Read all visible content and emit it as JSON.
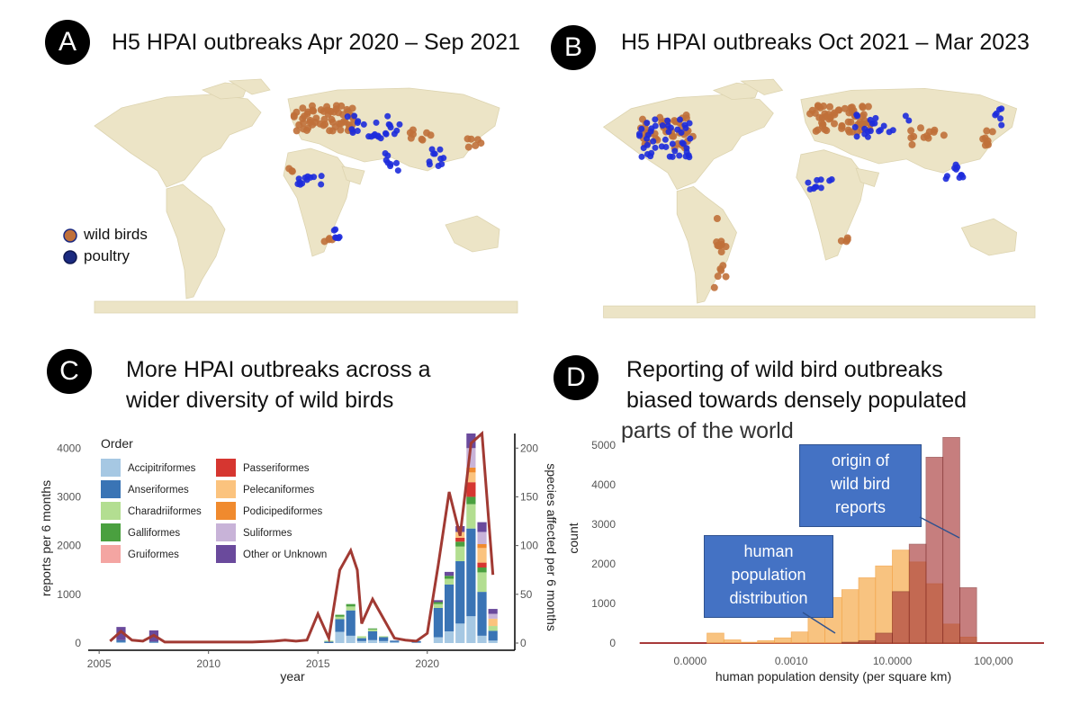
{
  "panels": {
    "a": {
      "badge": "A",
      "title": "H5 HPAI outbreaks Apr 2020 – Sep 2021"
    },
    "b": {
      "badge": "B",
      "title": "H5 HPAI outbreaks Oct 2021 – Mar 2023"
    },
    "c": {
      "badge": "C",
      "title_line1": "More HPAI outbreaks across a",
      "title_line2": "wider diversity of wild birds"
    },
    "d": {
      "badge": "D",
      "title_line1": "Reporting of wild bird outbreaks",
      "title_line2": "biased towards densely populated",
      "title_line3": "parts of the world"
    }
  },
  "map_legend": {
    "wild": "wild birds",
    "poultry": "poultry"
  },
  "colors": {
    "wild": "#c0703a",
    "poultry": "#1d2bdc",
    "land": "#ece4c6",
    "legend_wild": "#c0703a",
    "legend_poultry": "#1b2a80"
  },
  "callouts": {
    "origin": {
      "line1": "origin of",
      "line2": "wild bird",
      "line3": "reports"
    },
    "human": {
      "line1": "human",
      "line2": "population",
      "line3": "distribution"
    }
  },
  "chart_data": [
    {
      "type": "bar",
      "stacked": true,
      "title": "More HPAI outbreaks across a wider diversity of wild birds",
      "xlabel": "year",
      "ylabel": "reports per 6 months",
      "y2label": "species affected per 6 months",
      "xlim": [
        2004.5,
        2024
      ],
      "ylim": [
        0,
        4300
      ],
      "y2lim": [
        0,
        215
      ],
      "xticks": [
        "2005",
        "2010",
        "2015",
        "2020"
      ],
      "yticks": [
        "0",
        "1000",
        "2000",
        "3000",
        "4000"
      ],
      "y2ticks": [
        "0",
        "50",
        "100",
        "150",
        "200"
      ],
      "legend_title": "Order",
      "legend": [
        {
          "name": "Accipitriformes",
          "color": "#a6c8e3"
        },
        {
          "name": "Anseriformes",
          "color": "#3a74b5"
        },
        {
          "name": "Charadriiformes",
          "color": "#b3de91"
        },
        {
          "name": "Galliformes",
          "color": "#4aa03f"
        },
        {
          "name": "Gruiformes",
          "color": "#f4a5a2"
        },
        {
          "name": "Passeriformes",
          "color": "#d63630"
        },
        {
          "name": "Pelecaniformes",
          "color": "#fbc37e"
        },
        {
          "name": "Podicipediformes",
          "color": "#f08a2e"
        },
        {
          "name": "Suliformes",
          "color": "#c8b3d8"
        },
        {
          "name": "Other or Unknown",
          "color": "#6a4a9c"
        }
      ],
      "bar_width": 0.42,
      "bars": [
        {
          "x": 2006.0,
          "stack": {
            "Accipitriformes": 20,
            "Anseriformes": 40,
            "Other or Unknown": 270
          }
        },
        {
          "x": 2007.5,
          "stack": {
            "Accipitriformes": 10,
            "Anseriformes": 20,
            "Other or Unknown": 230
          }
        },
        {
          "x": 2015.5,
          "stack": {
            "Anseriformes": 30,
            "Charadriiformes": 20
          }
        },
        {
          "x": 2016.0,
          "stack": {
            "Anseriformes": 260,
            "Charadriiformes": 50,
            "Galliformes": 40,
            "Accipitriformes": 230
          }
        },
        {
          "x": 2016.5,
          "stack": {
            "Anseriformes": 520,
            "Charadriiformes": 80,
            "Galliformes": 50,
            "Accipitriformes": 150
          }
        },
        {
          "x": 2017.0,
          "stack": {
            "Anseriformes": 60,
            "Charadriiformes": 40,
            "Accipitriformes": 40
          }
        },
        {
          "x": 2017.5,
          "stack": {
            "Anseriformes": 180,
            "Charadriiformes": 40,
            "Galliformes": 20,
            "Accipitriformes": 60
          }
        },
        {
          "x": 2018.0,
          "stack": {
            "Anseriformes": 80,
            "Charadriiformes": 20,
            "Accipitriformes": 40
          }
        },
        {
          "x": 2018.5,
          "stack": {
            "Anseriformes": 30,
            "Accipitriformes": 20
          }
        },
        {
          "x": 2019.5,
          "stack": {
            "Anseriformes": 30,
            "Accipitriformes": 10
          }
        },
        {
          "x": 2020.5,
          "stack": {
            "Other or Unknown": 40,
            "Charadriiformes": 80,
            "Galliformes": 40,
            "Anseriformes": 600,
            "Accipitriformes": 120
          }
        },
        {
          "x": 2021.0,
          "stack": {
            "Other or Unknown": 80,
            "Charadriiformes": 120,
            "Galliformes": 60,
            "Anseriformes": 960,
            "Accipitriformes": 240
          }
        },
        {
          "x": 2021.5,
          "stack": {
            "Other or Unknown": 120,
            "Passeriformes": 80,
            "Pelecaniformes": 120,
            "Charadriiformes": 300,
            "Galliformes": 100,
            "Anseriformes": 1280,
            "Accipitriformes": 400
          }
        },
        {
          "x": 2022.0,
          "stack": {
            "Other or Unknown": 300,
            "Suliformes": 400,
            "Pelecaniformes": 200,
            "Podicipediformes": 100,
            "Passeriformes": 300,
            "Charadriiformes": 500,
            "Galliformes": 150,
            "Anseriformes": 1800,
            "Accipitriformes": 550
          }
        },
        {
          "x": 2022.5,
          "stack": {
            "Other or Unknown": 200,
            "Suliformes": 250,
            "Pelecaniformes": 300,
            "Podicipediformes": 80,
            "Passeriformes": 100,
            "Charadriiformes": 400,
            "Galliformes": 100,
            "Anseriformes": 900,
            "Accipitriformes": 150
          }
        },
        {
          "x": 2023.0,
          "stack": {
            "Other or Unknown": 100,
            "Suliformes": 100,
            "Pelecaniformes": 150,
            "Charadriiformes": 100,
            "Anseriformes": 200,
            "Accipitriformes": 50
          }
        }
      ],
      "species_line": {
        "name": "species affected per 6 months",
        "color": "#a13a33",
        "x": [
          2005.5,
          2006,
          2006.5,
          2007,
          2007.5,
          2008,
          2009,
          2010,
          2011,
          2012,
          2013,
          2013.5,
          2014,
          2014.5,
          2015,
          2015.5,
          2016,
          2016.5,
          2016.8,
          2017,
          2017.5,
          2018,
          2018.5,
          2019,
          2019.5,
          2020,
          2020.5,
          2021,
          2021.5,
          2022,
          2022.5,
          2023
        ],
        "y": [
          2,
          12,
          3,
          2,
          8,
          1,
          1,
          1,
          1,
          1,
          2,
          3,
          2,
          3,
          30,
          5,
          75,
          95,
          75,
          20,
          45,
          25,
          5,
          3,
          2,
          10,
          80,
          155,
          110,
          205,
          215,
          70
        ]
      }
    },
    {
      "type": "bar",
      "overlay": true,
      "title": "Reporting of wild bird outbreaks biased towards densely populated parts of the world",
      "xlabel": "human population density (per square km)",
      "ylabel": "count",
      "xscale": "log10",
      "xlim": [
        -6,
        6.5
      ],
      "ylim": [
        0,
        5300
      ],
      "xticks": [
        {
          "label": "0.0000",
          "log": -4
        },
        {
          "label": "0.0010",
          "log": -1
        },
        {
          "label": "10.0000",
          "log": 2
        },
        {
          "label": "100,000",
          "log": 5
        }
      ],
      "yticks": [
        "0",
        "1000",
        "2000",
        "3000",
        "4000",
        "5000"
      ],
      "bin_width_log": 0.5,
      "series": [
        {
          "name": "human population distribution",
          "color": "#f7b96a",
          "bins_log_start": [
            -3.5,
            -3,
            -2.5,
            -2,
            -1.5,
            -1,
            -0.5,
            0,
            0.5,
            1,
            1.5,
            2,
            2.5,
            3,
            3.5,
            4
          ],
          "values": [
            250,
            80,
            20,
            60,
            130,
            280,
            1300,
            1150,
            1350,
            1650,
            1950,
            2350,
            2050,
            1500,
            480,
            150
          ]
        },
        {
          "name": "origin of wild bird reports",
          "color": "#a83a3a",
          "bins_log_start": [
            0.5,
            1,
            1.5,
            2,
            2.5,
            3,
            3.5,
            4
          ],
          "values": [
            20,
            60,
            250,
            1300,
            2500,
            4700,
            5200,
            1400
          ]
        }
      ],
      "baseline_x_log": [
        -5.5,
        6.5
      ]
    }
  ]
}
